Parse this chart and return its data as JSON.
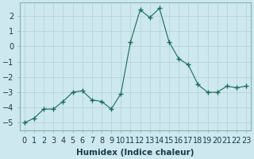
{
  "x": [
    0,
    1,
    2,
    3,
    4,
    5,
    6,
    7,
    8,
    9,
    10,
    11,
    12,
    13,
    14,
    15,
    16,
    17,
    18,
    19,
    20,
    21,
    22,
    23
  ],
  "y": [
    -5.0,
    -4.7,
    -4.1,
    -4.1,
    -3.6,
    -3.0,
    -2.9,
    -3.5,
    -3.6,
    -4.1,
    -3.1,
    0.3,
    2.4,
    1.9,
    2.5,
    0.3,
    -0.8,
    -1.2,
    -2.5,
    -3.0,
    -3.0,
    -2.6,
    -2.7,
    -2.6
  ],
  "line_color": "#1a6b5a",
  "marker": "+",
  "marker_size": 4,
  "bg_color": "#cde8ee",
  "grid_color": "#b8d4da",
  "xlabel": "Humidex (Indice chaleur)",
  "xlim": [
    -0.5,
    23.5
  ],
  "ylim": [
    -5.5,
    2.9
  ],
  "yticks": [
    -5,
    -4,
    -3,
    -2,
    -1,
    0,
    1,
    2
  ],
  "xtick_labels": [
    "0",
    "1",
    "2",
    "3",
    "4",
    "5",
    "6",
    "7",
    "8",
    "9",
    "10",
    "11",
    "12",
    "13",
    "14",
    "15",
    "16",
    "17",
    "18",
    "19",
    "20",
    "21",
    "22",
    "23"
  ],
  "xlabel_fontsize": 7.5,
  "tick_fontsize": 7.0
}
